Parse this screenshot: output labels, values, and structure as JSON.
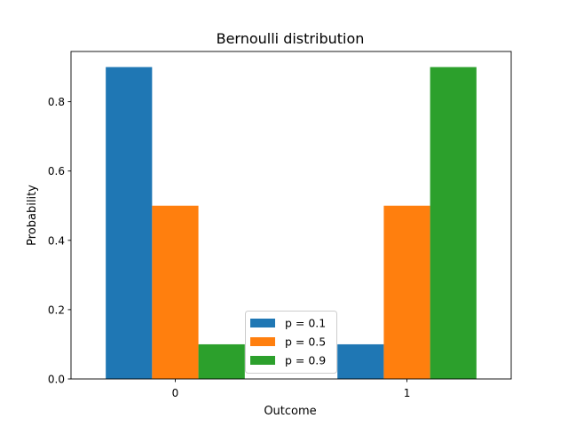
{
  "chart_data": {
    "type": "bar",
    "title": "Bernoulli distribution",
    "xlabel": "Outcome",
    "ylabel": "Probability",
    "categories": [
      "0",
      "1"
    ],
    "ylim": [
      0,
      0.945
    ],
    "yticks": [
      "0.0",
      "0.2",
      "0.4",
      "0.6",
      "0.8"
    ],
    "ytick_values": [
      0,
      0.2,
      0.4,
      0.6,
      0.8
    ],
    "grid": false,
    "legend_position": "lower center",
    "series": [
      {
        "name": "p = 0.1",
        "color": "#1f77b4",
        "values": [
          0.9,
          0.1
        ]
      },
      {
        "name": "p = 0.5",
        "color": "#ff7f0e",
        "values": [
          0.5,
          0.5
        ]
      },
      {
        "name": "p = 0.9",
        "color": "#2ca02c",
        "values": [
          0.1,
          0.9
        ]
      }
    ]
  }
}
